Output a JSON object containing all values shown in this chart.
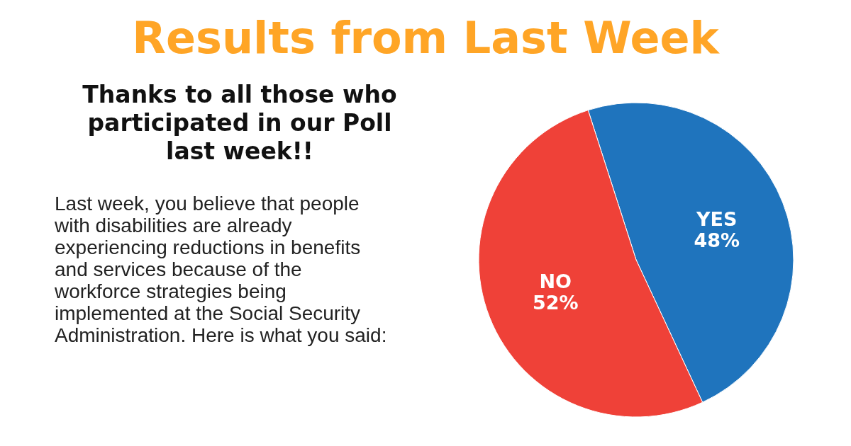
{
  "chart_data": {
    "type": "pie",
    "title": "Results from Last Week",
    "subtitle": "Thanks to all those who participated in our Poll last week!!",
    "annotations": [
      "Last week, you believe that people with disabilities are already experiencing reductions in benefits and services because of the workforce strategies being implemented at the Social Security Administration. Here is what you said:"
    ],
    "categories": [
      "YES",
      "NO"
    ],
    "values": [
      48,
      52
    ],
    "colors": [
      "#1f74bd",
      "#ef4138"
    ],
    "value_labels": [
      "48%",
      "52%"
    ]
  }
}
